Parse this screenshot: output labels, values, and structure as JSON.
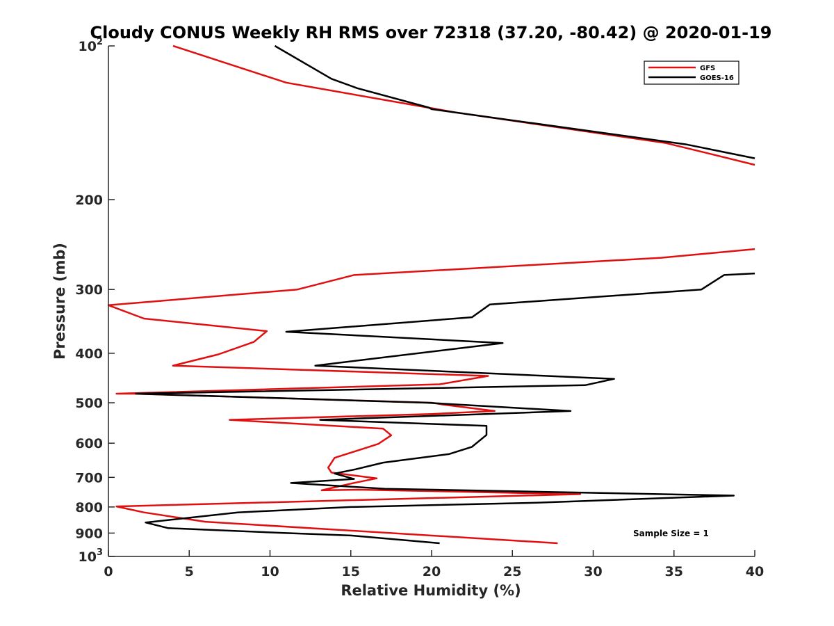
{
  "chart_data": {
    "type": "line",
    "title": "Cloudy CONUS Weekly RH RMS over 72318 (37.20, -80.42) @ 2020-01-19",
    "xlabel": "Relative Humidity (%)",
    "ylabel": "Pressure (mb)",
    "xlim": [
      0,
      40
    ],
    "ylim": [
      100,
      1000
    ],
    "yscale": "log",
    "y_reversed": true,
    "xticks": [
      0,
      5,
      10,
      15,
      20,
      25,
      30,
      35,
      40
    ],
    "xtick_labels": [
      "0",
      "5",
      "10",
      "15",
      "20",
      "25",
      "30",
      "35",
      "40"
    ],
    "yticks": [
      {
        "value": 100,
        "base": "10",
        "exp": "2"
      },
      {
        "value": 200,
        "base": "200",
        "exp": ""
      },
      {
        "value": 300,
        "base": "300",
        "exp": ""
      },
      {
        "value": 400,
        "base": "400",
        "exp": ""
      },
      {
        "value": 500,
        "base": "500",
        "exp": ""
      },
      {
        "value": 600,
        "base": "600",
        "exp": ""
      },
      {
        "value": 700,
        "base": "700",
        "exp": ""
      },
      {
        "value": 800,
        "base": "800",
        "exp": ""
      },
      {
        "value": 900,
        "base": "900",
        "exp": ""
      },
      {
        "value": 1000,
        "base": "10",
        "exp": "3"
      }
    ],
    "grid": false,
    "legend_position": "top-right",
    "annotation": "Sample Size = 1",
    "series": [
      {
        "name": "GFS",
        "color": "#e01010",
        "points": [
          [
            4.0,
            100
          ],
          [
            11.0,
            118
          ],
          [
            21.5,
            135
          ],
          [
            34.5,
            155
          ],
          [
            37.0,
            162
          ],
          [
            40.0,
            171
          ],
          [
            null,
            null
          ],
          [
            40.0,
            250
          ],
          [
            34.2,
            260
          ],
          [
            15.2,
            281
          ],
          [
            11.7,
            300
          ],
          [
            0.0,
            322
          ],
          [
            2.2,
            342
          ],
          [
            9.8,
            362
          ],
          [
            9.0,
            380
          ],
          [
            6.8,
            402
          ],
          [
            4.0,
            423
          ],
          [
            23.5,
            443
          ],
          [
            20.5,
            460
          ],
          [
            0.5,
            480
          ],
          [
            1.5,
            480
          ],
          [
            20.0,
            500
          ],
          [
            20.7,
            504
          ],
          [
            23.9,
            519
          ],
          [
            20.0,
            526
          ],
          [
            7.5,
            540
          ],
          [
            17.0,
            562
          ],
          [
            17.5,
            579
          ],
          [
            16.7,
            602
          ],
          [
            14.0,
            641
          ],
          [
            13.6,
            670
          ],
          [
            13.8,
            685
          ],
          [
            16.6,
            703
          ],
          [
            15.0,
            720
          ],
          [
            13.2,
            742
          ],
          [
            15.5,
            740
          ],
          [
            29.2,
            755
          ],
          [
            0.5,
            798
          ],
          [
            2.2,
            820
          ],
          [
            6.0,
            855
          ],
          [
            27.8,
            942
          ]
        ]
      },
      {
        "name": "GOES-16",
        "color": "#000000",
        "points": [
          [
            10.3,
            100
          ],
          [
            13.8,
            116
          ],
          [
            15.4,
            121
          ],
          [
            19.8,
            132
          ],
          [
            20.0,
            133
          ],
          [
            35.8,
            156
          ],
          [
            40.0,
            166
          ],
          [
            null,
            null
          ],
          [
            40.0,
            279
          ],
          [
            38.1,
            281
          ],
          [
            36.7,
            300
          ],
          [
            23.6,
            321
          ],
          [
            22.5,
            340
          ],
          [
            11.0,
            363
          ],
          [
            24.4,
            382
          ],
          [
            12.8,
            423
          ],
          [
            31.3,
            449
          ],
          [
            29.5,
            462
          ],
          [
            1.7,
            480
          ],
          [
            19.7,
            500
          ],
          [
            28.6,
            519
          ],
          [
            13.1,
            540
          ],
          [
            23.4,
            555
          ],
          [
            23.4,
            578
          ],
          [
            22.5,
            610
          ],
          [
            21.1,
            630
          ],
          [
            17.0,
            655
          ],
          [
            15.3,
            675
          ],
          [
            14.0,
            688
          ],
          [
            15.2,
            705
          ],
          [
            11.3,
            718
          ],
          [
            17.1,
            737
          ],
          [
            38.7,
            760
          ],
          [
            26.5,
            785
          ],
          [
            15.0,
            800
          ],
          [
            8.0,
            820
          ],
          [
            2.3,
            858
          ],
          [
            3.7,
            880
          ],
          [
            11.0,
            900
          ],
          [
            15.0,
            910
          ],
          [
            20.5,
            942
          ]
        ]
      }
    ]
  }
}
